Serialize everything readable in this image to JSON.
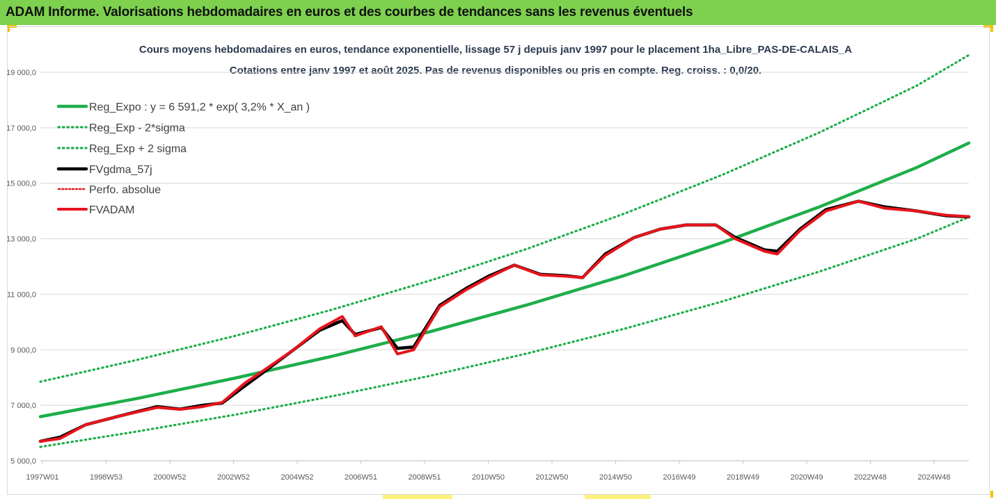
{
  "banner": {
    "title": "ADAM Informe. Valorisations hebdomadaires en euros et des courbes de tendances sans les revenus éventuels"
  },
  "colors": {
    "banner_bg": "#7dd14e",
    "trend_green": "#1fae4b",
    "series_red": "#e8141c",
    "series_black": "#000000",
    "corner_accent": "#f2c200"
  },
  "chart_data": {
    "type": "line",
    "title": "Cours moyens hebdomadaires en euros, tendance exponentielle, lissage 57 j depuis janv 1997 pour le placement 1ha_Libre_PAS-DE-CALAIS_A",
    "subtitle": "Cotations entre janv 1997 et août 2025.  Pas de revenus disponibles ou pris en compte. Reg. croiss. : 0,0/20.",
    "xlabel": "",
    "ylabel": "",
    "x_ticks": [
      "1997W01",
      "1998W53",
      "2000W52",
      "2002W52",
      "2004W52",
      "2006W51",
      "2008W51",
      "2010W50",
      "2012W50",
      "2014W50",
      "2016W49",
      "2018W49",
      "2020W49",
      "2022W48",
      "2024W48"
    ],
    "xlim": [
      1997.0,
      2025.6
    ],
    "y_ticks": [
      "5 000,0",
      "7 000,0",
      "9 000,0",
      "11 000,0",
      "13 000,0",
      "15 000,0",
      "17 000,0",
      "19 000,0"
    ],
    "ylim": [
      5000,
      19600
    ],
    "grid": "horizontal",
    "legend_position": "top-left",
    "series": [
      {
        "name": "Reg_Expo : y = 6 591,2 * exp( 3,2% *  X_an )",
        "style": "solid",
        "color": "#1fae4b",
        "x": [
          1997.0,
          2000.0,
          2003.0,
          2006.0,
          2009.0,
          2012.0,
          2015.0,
          2018.0,
          2021.0,
          2024.0,
          2025.6
        ],
        "values": [
          6590,
          7250,
          7980,
          8770,
          9650,
          10620,
          11680,
          12860,
          14150,
          15570,
          16450
        ]
      },
      {
        "name": "Reg_Exp - 2*sigma",
        "style": "dotted",
        "color": "#1fae4b",
        "x": [
          1997.0,
          2000.0,
          2003.0,
          2006.0,
          2009.0,
          2012.0,
          2015.0,
          2018.0,
          2021.0,
          2024.0,
          2025.6
        ],
        "values": [
          5500,
          6060,
          6660,
          7330,
          8060,
          8870,
          9760,
          10740,
          11820,
          13000,
          13780
        ]
      },
      {
        "name": "Reg_Exp + 2 sigma",
        "style": "dotted",
        "color": "#1fae4b",
        "x": [
          1997.0,
          2000.0,
          2003.0,
          2006.0,
          2009.0,
          2012.0,
          2015.0,
          2018.0,
          2021.0,
          2024.0,
          2025.6
        ],
        "values": [
          7850,
          8640,
          9500,
          10450,
          11490,
          12640,
          13910,
          15300,
          16830,
          18520,
          19620
        ]
      },
      {
        "name": "FVgdma_57j",
        "style": "solid",
        "color": "#000000",
        "x": [
          1997.0,
          1997.6,
          1998.4,
          1999.4,
          2000.6,
          2001.3,
          2002.0,
          2002.6,
          2003.3,
          2004.0,
          2004.8,
          2005.6,
          2006.3,
          2006.7,
          2007.5,
          2008.0,
          2008.5,
          2009.3,
          2010.1,
          2010.8,
          2011.6,
          2012.4,
          2013.2,
          2013.7,
          2014.4,
          2015.3,
          2016.1,
          2016.9,
          2017.8,
          2018.4,
          2019.3,
          2019.7,
          2020.4,
          2021.2,
          2022.2,
          2023.0,
          2024.0,
          2024.9,
          2025.6
        ],
        "values": [
          5700,
          5850,
          6300,
          6600,
          6950,
          6860,
          7000,
          7080,
          7700,
          8300,
          9000,
          9700,
          10050,
          9550,
          9800,
          9050,
          9100,
          10600,
          11200,
          11650,
          12050,
          11720,
          11670,
          11600,
          12450,
          13050,
          13350,
          13500,
          13500,
          13050,
          12600,
          12550,
          13350,
          14050,
          14350,
          14150,
          14000,
          13830,
          13790
        ]
      },
      {
        "name": "Perfo. absolue",
        "style": "dotted",
        "color": "#e8141c",
        "x": [
          1997.0,
          1997.6,
          1998.4,
          1999.4,
          2000.6,
          2001.3,
          2002.0,
          2002.6,
          2003.3,
          2004.0,
          2004.8,
          2005.6,
          2006.3,
          2006.7,
          2007.5,
          2008.0,
          2008.5,
          2009.3,
          2010.1,
          2010.8,
          2011.6,
          2012.4,
          2013.2,
          2013.7,
          2014.4,
          2015.3,
          2016.1,
          2016.9,
          2017.8,
          2018.4,
          2019.3,
          2019.7,
          2020.4,
          2021.2,
          2022.2,
          2023.0,
          2024.0,
          2024.9,
          2025.6
        ],
        "values": [
          5700,
          5800,
          6300,
          6600,
          6920,
          6850,
          6950,
          7100,
          7800,
          8350,
          9000,
          9750,
          10200,
          9500,
          9830,
          8850,
          9000,
          10550,
          11150,
          11600,
          12050,
          11700,
          11650,
          11600,
          12400,
          13050,
          13350,
          13500,
          13500,
          13000,
          12550,
          12450,
          13300,
          14000,
          14350,
          14100,
          14000,
          13850,
          13800
        ]
      },
      {
        "name": "FVADAM",
        "style": "solid",
        "color": "#e8141c",
        "x": [
          1997.0,
          1997.6,
          1998.4,
          1999.4,
          2000.6,
          2001.3,
          2002.0,
          2002.6,
          2003.3,
          2004.0,
          2004.8,
          2005.6,
          2006.3,
          2006.7,
          2007.5,
          2008.0,
          2008.5,
          2009.3,
          2010.1,
          2010.8,
          2011.6,
          2012.4,
          2013.2,
          2013.7,
          2014.4,
          2015.3,
          2016.1,
          2016.9,
          2017.8,
          2018.4,
          2019.3,
          2019.7,
          2020.4,
          2021.2,
          2022.2,
          2023.0,
          2024.0,
          2024.9,
          2025.6
        ],
        "values": [
          5700,
          5800,
          6300,
          6600,
          6920,
          6850,
          6950,
          7100,
          7800,
          8350,
          9000,
          9750,
          10200,
          9500,
          9830,
          8850,
          9000,
          10550,
          11150,
          11600,
          12050,
          11700,
          11650,
          11600,
          12400,
          13050,
          13350,
          13500,
          13500,
          13000,
          12550,
          12450,
          13300,
          14000,
          14350,
          14100,
          14000,
          13850,
          13800
        ]
      }
    ]
  }
}
